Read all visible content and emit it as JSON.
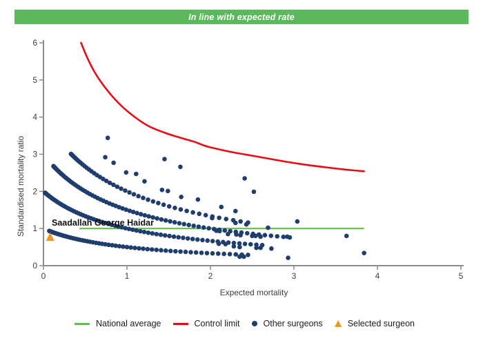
{
  "banner": {
    "text": "In line with expected rate",
    "bg_color": "#5cb85c",
    "text_color": "#ffffff"
  },
  "chart_data": {
    "type": "scatter",
    "title": "In line with expected rate",
    "xlabel": "Expected mortality",
    "ylabel": "Standardised mortality ratio",
    "xlim": [
      0,
      5
    ],
    "ylim": [
      0,
      6
    ],
    "x_ticks": [
      0,
      1,
      2,
      3,
      4,
      5
    ],
    "y_ticks": [
      0,
      1,
      2,
      3,
      4,
      5,
      6
    ],
    "grid": false,
    "legend_position": "bottom",
    "axis_color": "#8c8c8c",
    "tick_label_color": "#3d3d3d",
    "national_average": {
      "label": "National average",
      "color": "#62be4f",
      "y": 1.0,
      "x_start": 0.43,
      "x_end": 3.84
    },
    "control_limit": {
      "label": "Control limit",
      "color": "#ea0b12",
      "points": [
        [
          0.45,
          6.0
        ],
        [
          0.52,
          5.62
        ],
        [
          0.61,
          5.22
        ],
        [
          0.72,
          4.85
        ],
        [
          0.86,
          4.47
        ],
        [
          1.02,
          4.13
        ],
        [
          1.24,
          3.78
        ],
        [
          1.45,
          3.58
        ],
        [
          1.63,
          3.45
        ],
        [
          1.8,
          3.34
        ],
        [
          1.96,
          3.21
        ],
        [
          2.23,
          3.07
        ],
        [
          2.45,
          2.98
        ],
        [
          2.65,
          2.9
        ],
        [
          2.9,
          2.8
        ],
        [
          3.1,
          2.73
        ],
        [
          3.34,
          2.66
        ],
        [
          3.6,
          2.59
        ],
        [
          3.84,
          2.54
        ]
      ]
    },
    "selected_surgeon": {
      "label": "Selected surgeon",
      "name": "Saadallah George Haidar",
      "color": "#f0951f",
      "x": 0.08,
      "y": 0.78
    },
    "other_surgeons": {
      "label": "Other surgeons",
      "color": "#1f3e6e",
      "marker_radius": 3.3,
      "smr_formula": "smr = deaths / (1 + expected)",
      "bands": [
        {
          "deaths": 1,
          "x_start": 0.07,
          "x_end": 2.45,
          "count": 65,
          "power": 2
        },
        {
          "deaths": 2,
          "x_start": 0.02,
          "x_end": 2.62,
          "count": 75,
          "power": 2
        },
        {
          "deaths": 3,
          "x_start": 0.12,
          "x_end": 2.95,
          "count": 75,
          "power": 2
        },
        {
          "deaths": 4,
          "x_start": 0.33,
          "x_end": 2.45,
          "count": 48,
          "power": 2
        }
      ],
      "points": [
        [
          0.77,
          3.44
        ],
        [
          0.74,
          2.92
        ],
        [
          0.84,
          2.77
        ],
        [
          0.99,
          2.51
        ],
        [
          1.11,
          2.47
        ],
        [
          1.21,
          2.27
        ],
        [
          1.45,
          2.87
        ],
        [
          1.42,
          2.04
        ],
        [
          1.49,
          2.01
        ],
        [
          1.64,
          2.66
        ],
        [
          1.65,
          1.85
        ],
        [
          1.85,
          1.78
        ],
        [
          2.02,
          1.28
        ],
        [
          2.07,
          0.94
        ],
        [
          2.1,
          0.59
        ],
        [
          2.11,
          0.93
        ],
        [
          2.13,
          1.58
        ],
        [
          2.18,
          0.58
        ],
        [
          2.21,
          0.85
        ],
        [
          2.28,
          0.52
        ],
        [
          2.3,
          1.47
        ],
        [
          2.3,
          1.15
        ],
        [
          2.31,
          0.84
        ],
        [
          2.35,
          0.5
        ],
        [
          2.35,
          0.24
        ],
        [
          2.36,
          0.82
        ],
        [
          2.4,
          0.24
        ],
        [
          2.41,
          2.35
        ],
        [
          2.43,
          1.11
        ],
        [
          2.5,
          0.8
        ],
        [
          2.52,
          1.99
        ],
        [
          2.54,
          0.8
        ],
        [
          2.55,
          0.48
        ],
        [
          2.6,
          0.78
        ],
        [
          2.6,
          0.48
        ],
        [
          2.69,
          1.02
        ],
        [
          2.73,
          0.46
        ],
        [
          2.92,
          0.78
        ],
        [
          2.93,
          0.21
        ],
        [
          3.04,
          1.19
        ],
        [
          3.63,
          0.8
        ],
        [
          3.84,
          0.34
        ]
      ]
    }
  },
  "legend": {
    "items": [
      {
        "label": "National average",
        "type": "line",
        "color": "#62be4f"
      },
      {
        "label": "Control limit",
        "type": "line",
        "color": "#ea0b12"
      },
      {
        "label": "Other surgeons",
        "type": "dot",
        "color": "#1f3e6e"
      },
      {
        "label": "Selected surgeon",
        "type": "triangle",
        "color": "#f0951f"
      }
    ]
  }
}
